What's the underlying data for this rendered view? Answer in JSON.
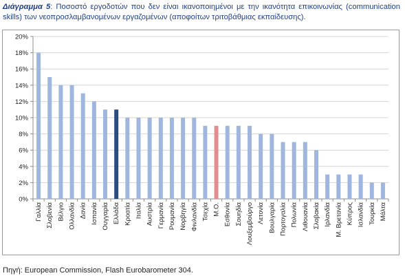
{
  "caption": {
    "label": "Διάγραμμα 5",
    "text": ": Ποσοστό εργοδοτών που δεν είναι ικανοποιημένοι με την ικανότητα επικοινωνίας (communication skills) των νεοπροσλαμβανομένων εργαζομένων (αποφοίτων τριτοβάθμιας εκπαίδευσης)."
  },
  "source": "Πηγή: European Commission, Flash Eurobarometer 304.",
  "chart_data": {
    "type": "bar",
    "title": "",
    "xlabel": "",
    "ylabel": "",
    "ylim": [
      0,
      20
    ],
    "yticks": [
      "0%",
      "2%",
      "4%",
      "6%",
      "8%",
      "10%",
      "12%",
      "14%",
      "16%",
      "18%",
      "20%"
    ],
    "grid": true,
    "legend": "none",
    "categories": [
      "Γαλλία",
      "Σλοβενία",
      "Βέλγιο",
      "Ολλανδία",
      "Δανία",
      "Ισπανία",
      "Ουγγαρία",
      "Ελλάδα",
      "Κροατία",
      "Ιταλία",
      "Αυστρία",
      "Γερμανία",
      "Ρουμανία",
      "Νορβηγία",
      "Φινλανδία",
      "Τσεχία",
      "Μ.Ο.",
      "Εσθονία",
      "Σουηδία",
      "Λουξεμβούργο",
      "Λετονία",
      "Βουλγαρία",
      "Πορτογαλία",
      "Πολωνία",
      "Λιθουανία",
      "Σλοβακία",
      "Ιρλανδία",
      "Μ. Βρετανία",
      "Κύπρος",
      "Ισλανδία",
      "Τουρκία",
      "Μάλτα"
    ],
    "values": [
      18,
      15,
      14,
      14,
      13,
      12,
      11,
      11,
      10,
      10,
      10,
      10,
      10,
      10,
      10,
      9,
      9,
      9,
      9,
      9,
      8,
      8,
      7,
      7,
      7,
      6,
      3,
      3,
      3,
      3,
      2,
      2
    ],
    "colors": {
      "default": "#9fb6dd",
      "Ελλάδα": "#2a4c80",
      "Μ.Ο.": "#e08f8f"
    }
  }
}
